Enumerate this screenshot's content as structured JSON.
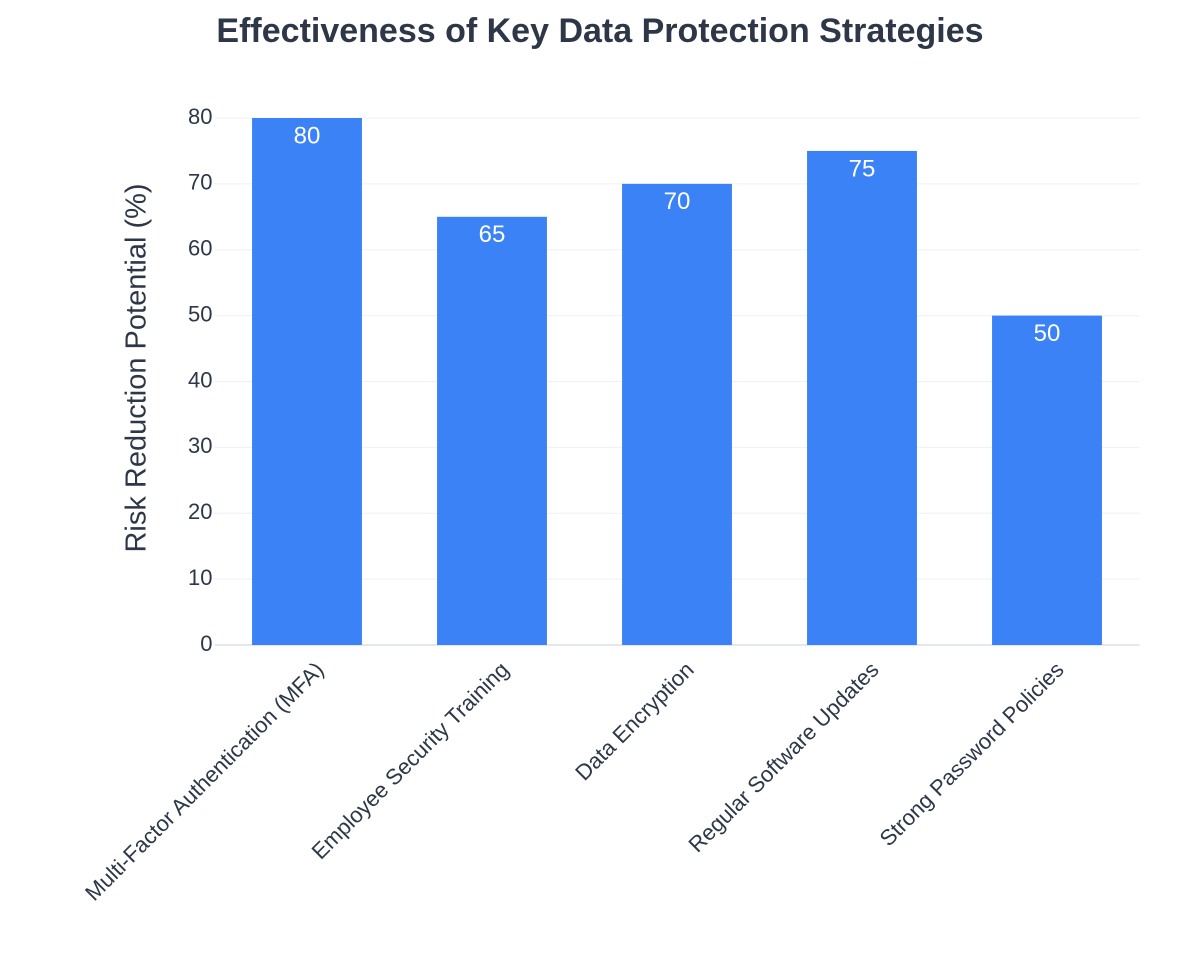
{
  "chart_data": {
    "type": "bar",
    "title": "Effectiveness of Key Data Protection Strategies",
    "y_label": "Risk Reduction Potential (%)",
    "categories": [
      "Multi-Factor Authentication (MFA)",
      "Employee Security Training",
      "Data Encryption",
      "Regular Software Updates",
      "Strong Password Policies"
    ],
    "values": [
      80,
      65,
      70,
      75,
      50
    ],
    "color": "#3b82f6",
    "ylim": [
      0,
      80
    ],
    "yticks": [
      0,
      10,
      20,
      30,
      40,
      50,
      60,
      70,
      80
    ],
    "grid": true
  }
}
